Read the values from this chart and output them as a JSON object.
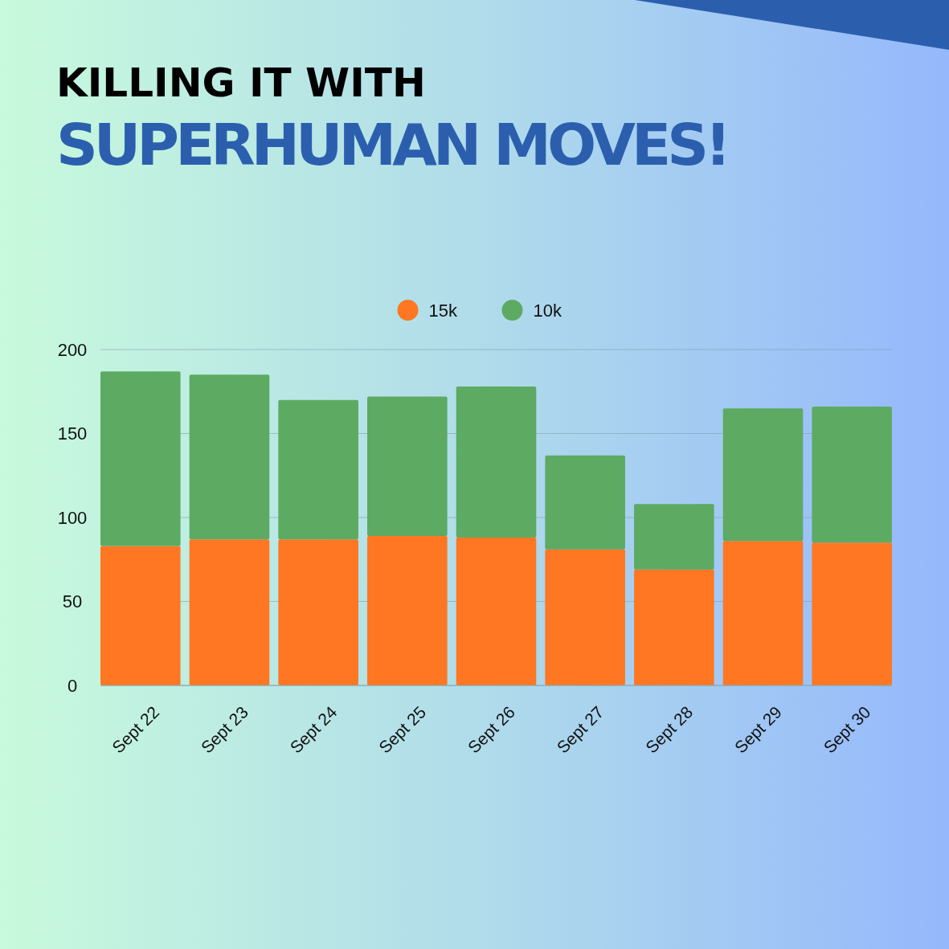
{
  "chart_data": {
    "type": "bar",
    "title": "KILLING IT WITH",
    "subtitle": "SUPERHUMAN MOVES!",
    "categories": [
      "Sept 22",
      "Sept 23",
      "Sept 24",
      "Sept 25",
      "Sept 26",
      "Sept 27",
      "Sept 28",
      "Sept 29",
      "Sept 30"
    ],
    "series": [
      {
        "name": "15k",
        "color": "#ff7722",
        "values": [
          83,
          87,
          87,
          89,
          88,
          81,
          69,
          86,
          85
        ]
      },
      {
        "name": "10k",
        "color": "#5daa63",
        "values": [
          104,
          98,
          83,
          83,
          90,
          56,
          39,
          79,
          81
        ]
      }
    ],
    "stacked": true,
    "ylim": [
      0,
      200
    ],
    "yticks": [
      0,
      50,
      100,
      150,
      200
    ],
    "grid": "y",
    "legend": "top"
  }
}
